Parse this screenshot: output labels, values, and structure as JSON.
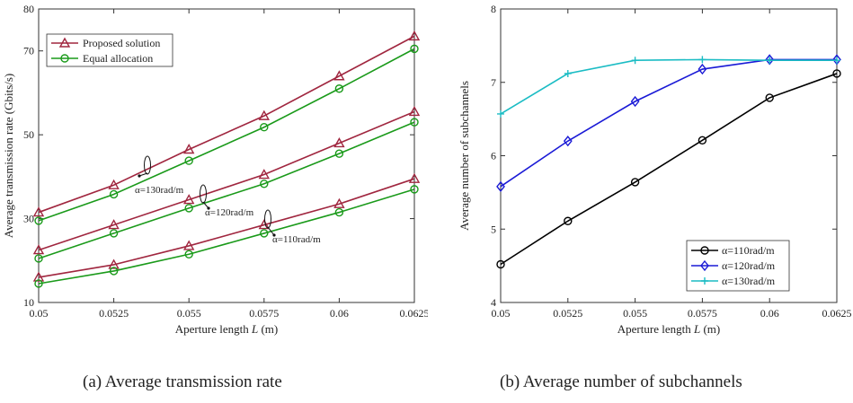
{
  "captions": {
    "a": "(a)  Average transmission rate",
    "b": "(b)  Average number of subchannels"
  },
  "chart_data": [
    {
      "type": "line",
      "xlabel": "Aperture length L (m)",
      "ylabel": "Average transmission rate (Gbits/s)",
      "x": [
        0.05,
        0.0525,
        0.055,
        0.0575,
        0.06,
        0.0625
      ],
      "xticks": [
        "0.05",
        "0.0525",
        "0.055",
        "0.0575",
        "0.06",
        "0.0625"
      ],
      "xlim": [
        0.05,
        0.0625
      ],
      "ylim": [
        10,
        80
      ],
      "yticks": [
        10,
        30,
        50,
        70,
        80
      ],
      "grid": false,
      "legend": {
        "position": "top-left",
        "entries": [
          {
            "label": "Proposed solution",
            "color": "#a0263f",
            "marker": "triangle"
          },
          {
            "label": "Equal allocation",
            "color": "#1a9a1a",
            "marker": "circle"
          }
        ]
      },
      "series": [
        {
          "name": "Proposed solution",
          "group": "α=130rad/m",
          "color": "#a0263f",
          "marker": "triangle",
          "values": [
            31.5,
            38.0,
            46.5,
            54.5,
            64.0,
            73.5
          ]
        },
        {
          "name": "Equal allocation",
          "group": "α=130rad/m",
          "color": "#1a9a1a",
          "marker": "circle",
          "values": [
            29.5,
            35.8,
            43.8,
            51.8,
            61.0,
            70.5
          ]
        },
        {
          "name": "Proposed solution",
          "group": "α=120rad/m",
          "color": "#a0263f",
          "marker": "triangle",
          "values": [
            22.5,
            28.5,
            34.5,
            40.5,
            48.0,
            55.5
          ]
        },
        {
          "name": "Equal allocation",
          "group": "α=120rad/m",
          "color": "#1a9a1a",
          "marker": "circle",
          "values": [
            20.5,
            26.5,
            32.5,
            38.3,
            45.5,
            53.0
          ]
        },
        {
          "name": "Proposed solution",
          "group": "α=110rad/m",
          "color": "#a0263f",
          "marker": "triangle",
          "values": [
            16.0,
            19.0,
            23.5,
            28.5,
            33.5,
            39.5
          ]
        },
        {
          "name": "Equal allocation",
          "group": "α=110rad/m",
          "color": "#1a9a1a",
          "marker": "circle",
          "values": [
            14.5,
            17.5,
            21.5,
            26.5,
            31.5,
            37.0
          ]
        }
      ],
      "annotations": [
        "α=130rad/m",
        "α=120rad/m",
        "α=110rad/m"
      ]
    },
    {
      "type": "line",
      "xlabel": "Aperture length L (m)",
      "ylabel": "Average number of subchannels",
      "x": [
        0.05,
        0.0525,
        0.055,
        0.0575,
        0.06,
        0.0625
      ],
      "xticks": [
        "0.05",
        "0.0525",
        "0.055",
        "0.0575",
        "0.06",
        "0.0625"
      ],
      "xlim": [
        0.05,
        0.0625
      ],
      "ylim": [
        4,
        8
      ],
      "yticks": [
        4,
        5,
        6,
        7,
        8
      ],
      "grid": false,
      "legend": {
        "position": "bottom-right",
        "entries": [
          {
            "label": "α=110rad/m",
            "color": "#000000",
            "marker": "circle"
          },
          {
            "label": "α=120rad/m",
            "color": "#1a1ad6",
            "marker": "diamond"
          },
          {
            "label": "α=130rad/m",
            "color": "#1bbcc4",
            "marker": "plus"
          }
        ]
      },
      "series": [
        {
          "name": "α=110rad/m",
          "color": "#000000",
          "marker": "circle",
          "values": [
            4.52,
            5.11,
            5.64,
            6.21,
            6.79,
            7.12
          ]
        },
        {
          "name": "α=120rad/m",
          "color": "#1a1ad6",
          "marker": "diamond",
          "values": [
            5.58,
            6.2,
            6.74,
            7.18,
            7.31,
            7.31
          ]
        },
        {
          "name": "α=130rad/m",
          "color": "#1bbcc4",
          "marker": "plus",
          "values": [
            6.57,
            7.12,
            7.3,
            7.31,
            7.3,
            7.3
          ]
        }
      ]
    }
  ]
}
